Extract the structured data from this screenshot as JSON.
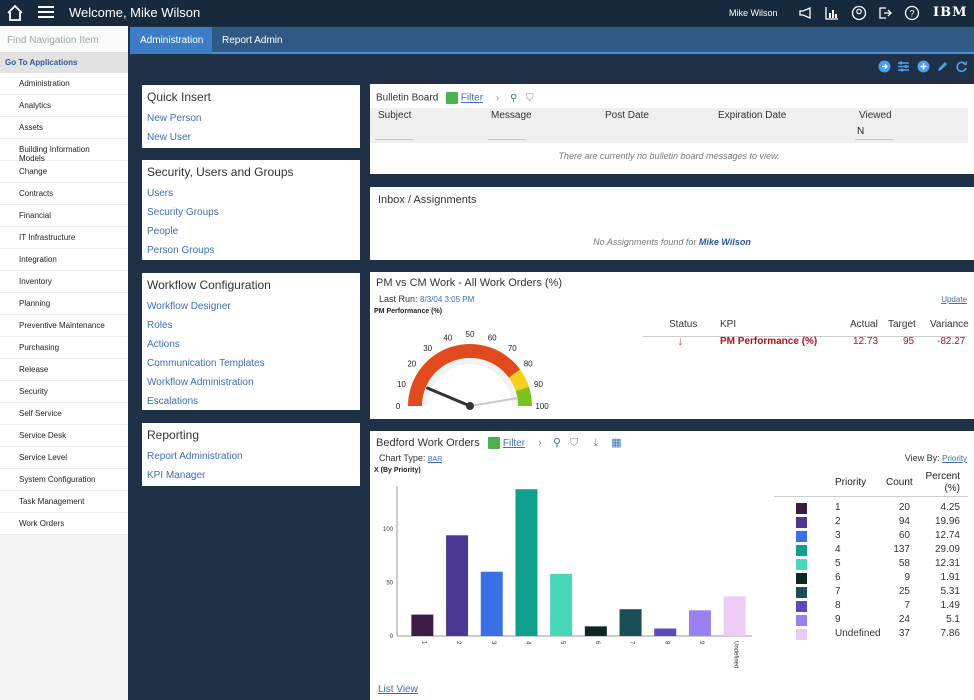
{
  "header": {
    "welcome": "Welcome, Mike Wilson",
    "user": "Mike Wilson",
    "brand": "IBM",
    "icons": [
      "megaphone-icon",
      "chart-icon",
      "user-icon",
      "logout-icon",
      "help-icon"
    ]
  },
  "nav": {
    "search_placeholder": "Find Navigation Item",
    "goto_label": "Go To Applications",
    "items": [
      "Administration",
      "Analytics",
      "Assets",
      "Building Information Models",
      "Change",
      "Contracts",
      "Financial",
      "IT Infrastructure",
      "Integration",
      "Inventory",
      "Planning",
      "Preventive Maintenance",
      "Purchasing",
      "Release",
      "Security",
      "Self Service",
      "Service Desk",
      "Service Level",
      "System Configuration",
      "Task Management",
      "Work Orders"
    ]
  },
  "tabs": [
    "Administration",
    "Report Admin"
  ],
  "quick_insert": {
    "title": "Quick Insert",
    "links": [
      "New Person",
      "New User"
    ]
  },
  "security": {
    "title": "Security, Users and Groups",
    "links": [
      "Users",
      "Security Groups",
      "People",
      "Person Groups"
    ]
  },
  "workflow": {
    "title": "Workflow Configuration",
    "links": [
      "Workflow Designer",
      "Roles",
      "Actions",
      "Communication Templates",
      "Workflow Administration",
      "Escalations"
    ]
  },
  "reporting": {
    "title": "Reporting",
    "links": [
      "Report Administration",
      "KPI Manager"
    ]
  },
  "bulletin": {
    "title": "Bulletin Board",
    "filter": "Filter",
    "columns": [
      "Subject",
      "Message",
      "Post Date",
      "Expiration Date",
      "Viewed"
    ],
    "viewed_value": "N",
    "empty": "There are currently no bulletin board messages to view."
  },
  "inbox": {
    "title": "Inbox / Assignments",
    "empty_prefix": "No Assignments found for",
    "empty_user": "Mike Wilson"
  },
  "kpi": {
    "title": "PM vs CM Work - All Work Orders (%)",
    "last_run_label": "Last Run:",
    "last_run": "8/3/04 3:05 PM",
    "update": "Update",
    "gauge_title": "PM Performance (%)",
    "gauge_value": 12.73,
    "gauge_ticks": [
      "0",
      "10",
      "20",
      "30",
      "40",
      "50",
      "60",
      "70",
      "80",
      "90",
      "100"
    ],
    "columns": [
      "Status",
      "KPI",
      "Actual",
      "Target",
      "Variance"
    ],
    "row": {
      "kpi": "PM Performance (%)",
      "actual": "12.73",
      "target": "95",
      "variance": "-82.27"
    }
  },
  "bedford": {
    "title": "Bedford Work Orders",
    "filter": "Filter",
    "chart_type_label": "Chart Type:",
    "chart_type": "BAR",
    "view_by_label": "View By:",
    "view_by": "Priority",
    "list_view": "List View",
    "table_headers": [
      "Priority",
      "Count",
      "Percent (%)"
    ]
  },
  "chart_data": {
    "type": "bar",
    "title": "X (By Priority)",
    "categories": [
      "1",
      "2",
      "3",
      "4",
      "5",
      "6",
      "7",
      "8",
      "9",
      "Undefined"
    ],
    "values": [
      20,
      94,
      60,
      137,
      58,
      9,
      25,
      7,
      24,
      37
    ],
    "percents": [
      "4.25",
      "19.96",
      "12.74",
      "29.09",
      "12.31",
      "1.91",
      "5.31",
      "1.49",
      "5.1",
      "7.86"
    ],
    "colors": [
      "#3b1c47",
      "#4b3896",
      "#3a6fe8",
      "#0f9f8c",
      "#46d6b8",
      "#102624",
      "#1a4d55",
      "#5e48c4",
      "#9b80ef",
      "#eecbf5"
    ],
    "ylim": [
      0,
      140
    ],
    "yticks": [
      "0",
      "50",
      "100"
    ]
  }
}
